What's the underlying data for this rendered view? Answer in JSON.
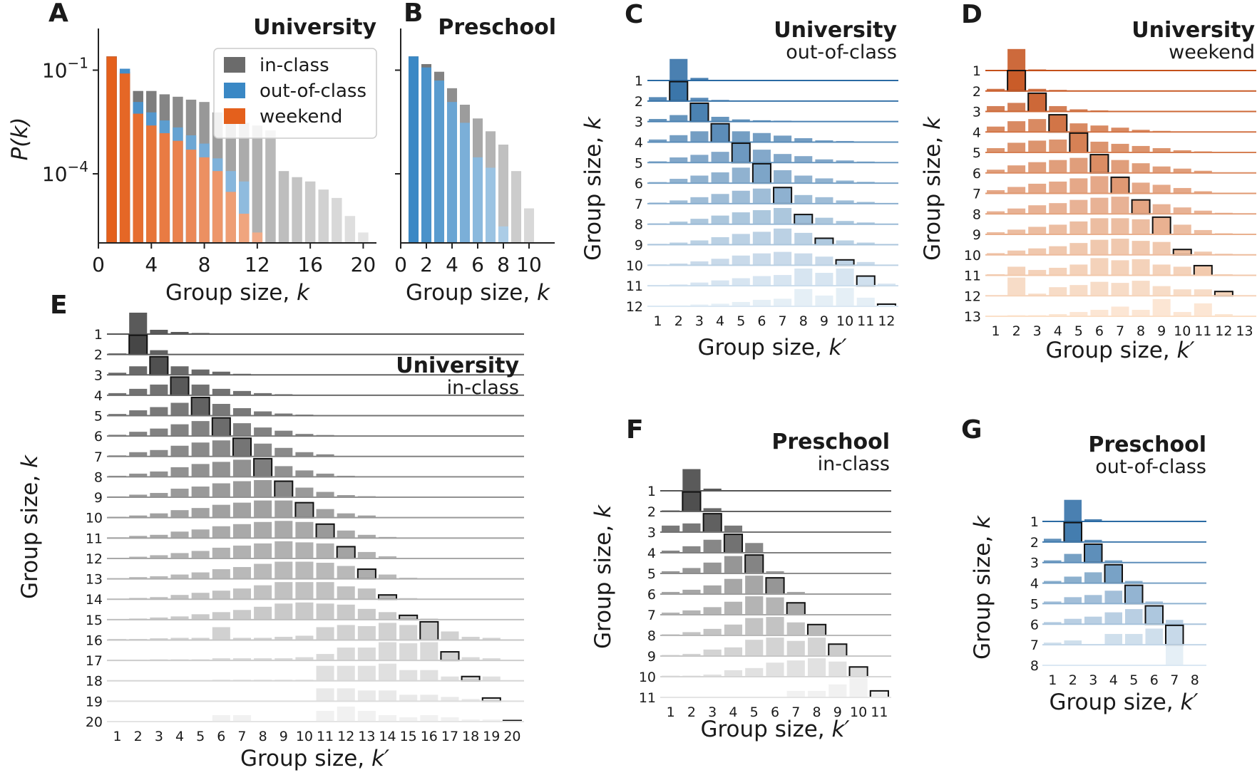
{
  "chart_data": [
    {
      "panel": "A",
      "type": "bar",
      "title": "University",
      "xlabel": "Group size, k",
      "ylabel": "P(k)",
      "yscale": "log",
      "ylim": [
        1e-06,
        1
      ],
      "xlim": [
        0,
        21
      ],
      "xticks": [
        "0",
        "4",
        "8",
        "12",
        "16",
        "20"
      ],
      "yticks": [
        {
          "label": "10^{-1}",
          "base": "10",
          "exp": "−1",
          "value": 0.1
        },
        {
          "label": "10^{-4}",
          "base": "10",
          "exp": "−4",
          "value": 0.0001
        }
      ],
      "legend": {
        "position": "top-right",
        "entries": [
          "in-class",
          "out-of-class",
          "weekend"
        ]
      },
      "categories": [
        1,
        2,
        3,
        4,
        5,
        6,
        7,
        8,
        9,
        10,
        11,
        12,
        13,
        14,
        15,
        16,
        17,
        18,
        19,
        20
      ],
      "series": [
        {
          "name": "in-class",
          "color": "#6b6b6b",
          "values": [
            0.25,
            0.09,
            0.025,
            0.025,
            0.02,
            0.017,
            0.014,
            0.012,
            0.006,
            0.0045,
            0.003,
            0.0025,
            0.0018,
            0.00012,
            8e-05,
            6e-05,
            3.5e-05,
            2e-05,
            6e-06,
            2e-06
          ]
        },
        {
          "name": "out-of-class",
          "color": "#3a88c5",
          "values": [
            0.25,
            0.11,
            0.012,
            0.006,
            0.0035,
            0.0022,
            0.0013,
            0.00075,
            0.00028,
            0.00012,
            6e-05,
            null,
            null,
            null,
            null,
            null,
            null,
            null,
            null,
            null
          ]
        },
        {
          "name": "weekend",
          "color": "#e4601c",
          "values": [
            0.25,
            0.08,
            0.0055,
            0.0025,
            0.0015,
            0.0009,
            0.0005,
            0.0003,
            0.00012,
            3e-05,
            7e-06,
            2e-06,
            null,
            null,
            null,
            null,
            null,
            null,
            null,
            null
          ]
        }
      ]
    },
    {
      "panel": "B",
      "type": "bar",
      "title": "Preschool",
      "xlabel": "Group size, k",
      "yscale": "log",
      "ylim": [
        1e-06,
        1
      ],
      "xlim": [
        0,
        12
      ],
      "xticks": [
        "0",
        "2",
        "4",
        "6",
        "8",
        "10"
      ],
      "categories": [
        1,
        2,
        3,
        4,
        5,
        6,
        7,
        8,
        9,
        10,
        11
      ],
      "series": [
        {
          "name": "in-class",
          "color": "#6b6b6b",
          "values": [
            0.25,
            0.15,
            0.09,
            0.03,
            0.01,
            0.004,
            0.0017,
            0.0007,
            0.00012,
            1e-05,
            null
          ]
        },
        {
          "name": "out-of-class",
          "color": "#3a88c5",
          "values": [
            0.25,
            0.12,
            0.05,
            0.012,
            0.003,
            0.0003,
            0.00015,
            3e-06,
            null,
            null,
            null
          ]
        }
      ]
    },
    {
      "panel": "C",
      "type": "bar",
      "subtype": "ridgeline",
      "title": "University",
      "subtitle": "out-of-class",
      "xlabel": "Group size, k′",
      "ylabel": "Group size, k",
      "palette": "blue",
      "n": 12,
      "rows": [
        [
          0,
          1.0,
          0.12,
          0,
          0,
          0,
          0,
          0,
          0,
          0,
          0,
          0
        ],
        [
          0.18,
          0.9,
          0.15,
          0.05,
          0.02,
          0.01,
          0,
          0,
          0,
          0,
          0,
          0
        ],
        [
          0.12,
          0.3,
          0.85,
          0.22,
          0.1,
          0.06,
          0.04,
          0.02,
          0.01,
          0,
          0,
          0
        ],
        [
          0.12,
          0.32,
          0.5,
          0.85,
          0.5,
          0.42,
          0.3,
          0.18,
          0.08,
          0.05,
          0.03,
          0
        ],
        [
          0.06,
          0.24,
          0.36,
          0.5,
          0.9,
          0.6,
          0.4,
          0.3,
          0.15,
          0.1,
          0.05,
          0
        ],
        [
          0.05,
          0.2,
          0.35,
          0.5,
          0.72,
          0.9,
          0.6,
          0.35,
          0.22,
          0.12,
          0.06,
          0
        ],
        [
          0.05,
          0.15,
          0.3,
          0.45,
          0.6,
          0.7,
          0.75,
          0.4,
          0.3,
          0.15,
          0.08,
          0
        ],
        [
          0.04,
          0.12,
          0.25,
          0.4,
          0.55,
          0.65,
          0.75,
          0.45,
          0.3,
          0.15,
          0.08,
          0
        ],
        [
          0.04,
          0.1,
          0.2,
          0.35,
          0.5,
          0.6,
          0.75,
          0.55,
          0.3,
          0.2,
          0.1,
          0
        ],
        [
          0.04,
          0.08,
          0.18,
          0.3,
          0.45,
          0.55,
          0.62,
          0.55,
          0.4,
          0.25,
          0.15,
          0
        ],
        [
          0.02,
          0.06,
          0.15,
          0.25,
          0.35,
          0.45,
          0.5,
          0.8,
          0.6,
          0.8,
          0.45,
          0.1
        ],
        [
          0.02,
          0.04,
          0.08,
          0.12,
          0.2,
          0.3,
          0.35,
          0.8,
          0.5,
          0.85,
          0.4,
          0.1
        ]
      ]
    },
    {
      "panel": "D",
      "type": "bar",
      "subtype": "ridgeline",
      "title": "University",
      "subtitle": "weekend",
      "xlabel": "Group size, k′",
      "ylabel": "Group size, k",
      "palette": "orange",
      "n": 13,
      "rows": [
        [
          0,
          1.0,
          0.05,
          0,
          0,
          0,
          0,
          0,
          0,
          0,
          0,
          0,
          0
        ],
        [
          0.1,
          0.95,
          0.1,
          0.05,
          0,
          0,
          0,
          0,
          0,
          0,
          0,
          0,
          0
        ],
        [
          0.25,
          0.4,
          0.85,
          0.25,
          0.1,
          0.05,
          0.02,
          0,
          0,
          0,
          0,
          0,
          0
        ],
        [
          0.25,
          0.5,
          0.6,
          0.8,
          0.4,
          0.3,
          0.2,
          0.1,
          0.05,
          0.02,
          0,
          0,
          0
        ],
        [
          0.2,
          0.45,
          0.55,
          0.6,
          0.9,
          0.5,
          0.4,
          0.3,
          0.2,
          0.1,
          0.05,
          0,
          0
        ],
        [
          0.15,
          0.35,
          0.5,
          0.6,
          0.7,
          0.85,
          0.6,
          0.45,
          0.3,
          0.2,
          0.1,
          0,
          0
        ],
        [
          0.15,
          0.3,
          0.45,
          0.55,
          0.7,
          0.8,
          0.75,
          0.5,
          0.4,
          0.25,
          0.1,
          0,
          0
        ],
        [
          0.12,
          0.25,
          0.4,
          0.5,
          0.65,
          0.75,
          0.8,
          0.65,
          0.45,
          0.3,
          0.15,
          0.05,
          0
        ],
        [
          0.1,
          0.22,
          0.35,
          0.45,
          0.6,
          0.75,
          0.75,
          0.7,
          0.8,
          0.45,
          0.2,
          0.05,
          0
        ],
        [
          0.08,
          0.2,
          0.3,
          0.4,
          0.55,
          0.7,
          0.75,
          0.65,
          0.6,
          0.25,
          0.15,
          0.05,
          0
        ],
        [
          0.05,
          0.4,
          0.25,
          0.35,
          0.5,
          0.8,
          0.7,
          0.75,
          0.5,
          0.4,
          0.45,
          0.05,
          0
        ],
        [
          0.02,
          0.85,
          0.1,
          0.4,
          0.5,
          0.65,
          0.6,
          0.7,
          0.45,
          0.3,
          0.3,
          0.2,
          0
        ],
        [
          0.02,
          0.05,
          0.05,
          0.1,
          0.2,
          0.3,
          0.45,
          0.3,
          0.8,
          0.2,
          0.6,
          0.1,
          0
        ]
      ]
    },
    {
      "panel": "E",
      "type": "bar",
      "subtype": "ridgeline",
      "title": "University",
      "subtitle": "in-class",
      "xlabel": "Group size, k′",
      "ylabel": "Group size, k",
      "palette": "gray",
      "n": 20,
      "rows": [
        [
          0,
          1.0,
          0.2,
          0.1,
          0.05,
          0,
          0,
          0,
          0,
          0,
          0,
          0,
          0,
          0,
          0,
          0,
          0,
          0,
          0,
          0
        ],
        [
          0.05,
          0.9,
          0.2,
          0,
          0,
          0,
          0,
          0,
          0,
          0,
          0,
          0,
          0,
          0,
          0,
          0,
          0,
          0,
          0,
          0
        ],
        [
          0.1,
          0.4,
          0.85,
          0.4,
          0.25,
          0.15,
          0.05,
          0,
          0,
          0,
          0,
          0,
          0,
          0,
          0,
          0,
          0,
          0,
          0,
          0
        ],
        [
          0.1,
          0.3,
          0.5,
          0.85,
          0.5,
          0.3,
          0.2,
          0.1,
          0.05,
          0,
          0,
          0,
          0,
          0,
          0,
          0,
          0,
          0,
          0,
          0
        ],
        [
          0.08,
          0.25,
          0.4,
          0.6,
          0.85,
          0.55,
          0.35,
          0.2,
          0.1,
          0.05,
          0,
          0,
          0,
          0,
          0,
          0,
          0,
          0,
          0,
          0
        ],
        [
          0.06,
          0.2,
          0.35,
          0.55,
          0.7,
          0.85,
          0.6,
          0.4,
          0.25,
          0.1,
          0.05,
          0,
          0,
          0,
          0,
          0,
          0,
          0,
          0,
          0
        ],
        [
          0.05,
          0.2,
          0.3,
          0.5,
          0.65,
          0.75,
          0.85,
          0.6,
          0.4,
          0.2,
          0.1,
          0,
          0,
          0,
          0,
          0,
          0,
          0,
          0,
          0
        ],
        [
          0.05,
          0.15,
          0.25,
          0.45,
          0.6,
          0.7,
          0.8,
          0.85,
          0.5,
          0.3,
          0.15,
          0.05,
          0,
          0,
          0,
          0,
          0,
          0,
          0,
          0
        ],
        [
          0.04,
          0.12,
          0.2,
          0.4,
          0.5,
          0.65,
          0.75,
          0.8,
          0.75,
          0.45,
          0.25,
          0.1,
          0.05,
          0,
          0,
          0,
          0,
          0,
          0,
          0
        ],
        [
          0.04,
          0.1,
          0.2,
          0.35,
          0.45,
          0.6,
          0.7,
          0.8,
          0.8,
          0.7,
          0.4,
          0.2,
          0.1,
          0,
          0,
          0,
          0,
          0,
          0,
          0
        ],
        [
          0.03,
          0.1,
          0.15,
          0.3,
          0.4,
          0.55,
          0.65,
          0.75,
          0.8,
          0.75,
          0.65,
          0.35,
          0.15,
          0.05,
          0,
          0,
          0,
          0,
          0,
          0
        ],
        [
          0.03,
          0.08,
          0.15,
          0.25,
          0.35,
          0.5,
          0.6,
          0.7,
          0.8,
          0.75,
          0.7,
          0.55,
          0.3,
          0.1,
          0,
          0,
          0,
          0,
          0,
          0
        ],
        [
          0.02,
          0.08,
          0.12,
          0.2,
          0.3,
          0.45,
          0.55,
          0.7,
          0.8,
          0.8,
          0.75,
          0.6,
          0.45,
          0.2,
          0.05,
          0,
          0,
          0,
          0,
          0
        ],
        [
          0.02,
          0.06,
          0.1,
          0.2,
          0.3,
          0.4,
          0.5,
          0.65,
          0.8,
          0.8,
          0.8,
          0.6,
          0.5,
          0.2,
          0.05,
          0,
          0,
          0,
          0,
          0
        ],
        [
          0.02,
          0.05,
          0.1,
          0.15,
          0.25,
          0.35,
          0.45,
          0.6,
          0.75,
          0.8,
          0.75,
          0.7,
          0.5,
          0.35,
          0.2,
          0.05,
          0,
          0,
          0,
          0
        ],
        [
          0.05,
          0.05,
          0.08,
          0.1,
          0.1,
          0.6,
          0.1,
          0.1,
          0.15,
          0.2,
          0.6,
          0.7,
          0.65,
          0.8,
          0.7,
          0.85,
          0.4,
          0.15,
          0.1,
          0
        ],
        [
          0.03,
          0.03,
          0.05,
          0.05,
          0.05,
          0.1,
          0.1,
          0.1,
          0.1,
          0.15,
          0.3,
          0.6,
          0.6,
          0.85,
          0.8,
          0.85,
          0.4,
          0.15,
          0.1,
          0
        ],
        [
          0.02,
          0.02,
          0.02,
          0.02,
          0.02,
          0.05,
          0.05,
          0.05,
          0.05,
          0.05,
          0.7,
          0.7,
          0.7,
          0.8,
          0.5,
          0.5,
          0.2,
          0.2,
          0.2,
          0
        ],
        [
          0.02,
          0.02,
          0.02,
          0.02,
          0.02,
          0.02,
          0.02,
          0.02,
          0.02,
          0.02,
          0.6,
          0.6,
          0.5,
          0.5,
          0.3,
          0.3,
          0.2,
          0.1,
          0.15,
          0
        ],
        [
          0.02,
          0.02,
          0.02,
          0.02,
          0.02,
          0.3,
          0.3,
          0.02,
          0.02,
          0.02,
          0.5,
          0.7,
          0.5,
          0.3,
          0.2,
          0.3,
          0.2,
          0.1,
          0.1,
          0.05
        ]
      ]
    },
    {
      "panel": "F",
      "type": "bar",
      "subtype": "ridgeline",
      "title": "Preschool",
      "subtitle": "in-class",
      "xlabel": "Group size, k′",
      "ylabel": "Group size, k",
      "palette": "gray",
      "n": 11,
      "rows": [
        [
          0,
          1.0,
          0.1,
          0,
          0,
          0,
          0,
          0,
          0,
          0,
          0
        ],
        [
          0.05,
          0.9,
          0.15,
          0,
          0,
          0,
          0,
          0,
          0,
          0,
          0
        ],
        [
          0.3,
          0.4,
          0.85,
          0.3,
          0,
          0,
          0,
          0,
          0,
          0,
          0
        ],
        [
          0.1,
          0.3,
          0.6,
          0.85,
          0.45,
          0,
          0,
          0,
          0,
          0,
          0
        ],
        [
          0.1,
          0.25,
          0.5,
          0.8,
          0.85,
          0.1,
          0,
          0,
          0,
          0,
          0
        ],
        [
          0.1,
          0.2,
          0.4,
          0.7,
          0.85,
          0.75,
          0.1,
          0,
          0,
          0,
          0
        ],
        [
          0.1,
          0.2,
          0.35,
          0.6,
          0.85,
          0.8,
          0.55,
          0,
          0,
          0,
          0
        ],
        [
          0.05,
          0.15,
          0.3,
          0.5,
          0.8,
          0.85,
          0.6,
          0.5,
          0,
          0,
          0
        ],
        [
          0.05,
          0.1,
          0.3,
          0.4,
          0.75,
          0.85,
          0.7,
          0.85,
          0.55,
          0,
          0
        ],
        [
          0.05,
          0.05,
          0.1,
          0.3,
          0.4,
          0.65,
          0.75,
          0.85,
          0.7,
          0.45,
          0
        ],
        [
          0,
          0,
          0,
          0,
          0,
          0,
          0.3,
          0.3,
          0.6,
          0.9,
          0.3
        ]
      ]
    },
    {
      "panel": "G",
      "type": "bar",
      "subtype": "ridgeline",
      "title": "Preschool",
      "subtitle": "out-of-class",
      "xlabel": "Group size, k′",
      "ylabel": "Group size, k",
      "palette": "blue",
      "n": 8,
      "rows": [
        [
          0,
          1.0,
          0.1,
          0,
          0,
          0,
          0,
          0
        ],
        [
          0.15,
          0.9,
          0.1,
          0,
          0,
          0,
          0,
          0
        ],
        [
          0.1,
          0.4,
          0.85,
          0.1,
          0,
          0,
          0,
          0
        ],
        [
          0.1,
          0.3,
          0.5,
          0.85,
          0.1,
          0,
          0,
          0
        ],
        [
          0.1,
          0.3,
          0.4,
          0.6,
          0.85,
          0.1,
          0,
          0
        ],
        [
          0.1,
          0.25,
          0.35,
          0.55,
          0.7,
          0.85,
          0.2,
          0
        ],
        [
          0.1,
          0.2,
          0,
          0.5,
          0.5,
          0.75,
          0.9,
          0
        ],
        [
          0,
          0,
          0,
          0,
          0,
          0,
          0.9,
          0
        ]
      ]
    }
  ]
}
